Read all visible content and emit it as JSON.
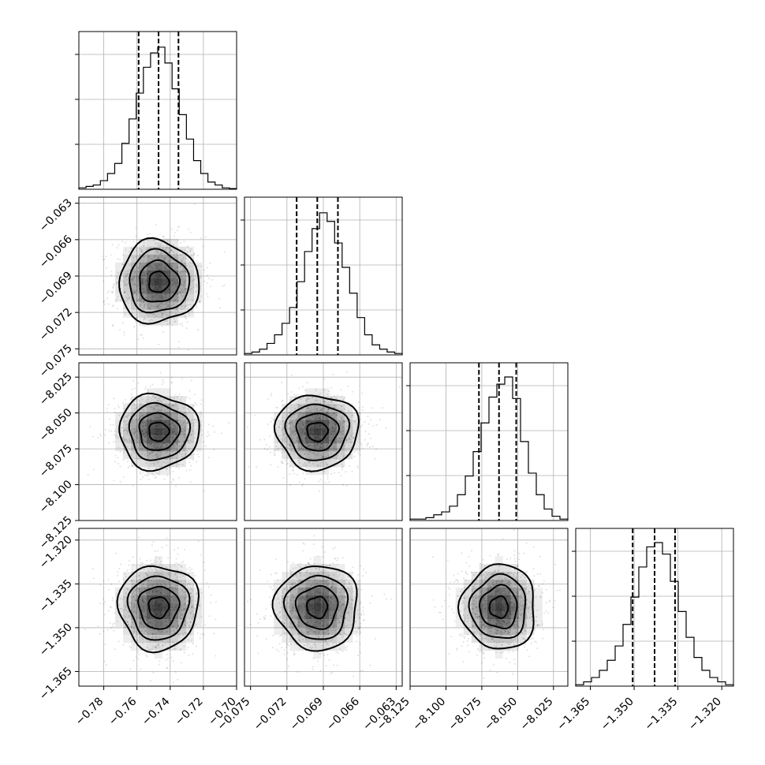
{
  "chart_data": {
    "type": "corner",
    "grid": true,
    "parameters": [
      {
        "range": [
          -0.795,
          -0.7
        ],
        "ticks": [
          -0.78,
          -0.76,
          -0.74,
          -0.72,
          -0.7
        ],
        "tick_labels": [
          "−0.78",
          "−0.76",
          "−0.74",
          "−0.72",
          "−0.70"
        ],
        "median": -0.747,
        "quantiles": [
          -0.759,
          -0.747,
          -0.735
        ],
        "histogram": [
          0.01,
          0.02,
          0.03,
          0.06,
          0.11,
          0.18,
          0.32,
          0.49,
          0.67,
          0.85,
          0.95,
          0.99,
          0.88,
          0.7,
          0.52,
          0.35,
          0.2,
          0.11,
          0.05,
          0.03,
          0.01,
          0.005
        ]
      },
      {
        "range": [
          -0.0755,
          -0.0625
        ],
        "ticks": [
          -0.075,
          -0.072,
          -0.069,
          -0.066,
          -0.063
        ],
        "tick_labels": [
          "−0.075",
          "−0.072",
          "−0.069",
          "−0.066",
          "−0.063"
        ],
        "median": -0.0695,
        "quantiles": [
          -0.0712,
          -0.0695,
          -0.0678
        ],
        "histogram": [
          0.01,
          0.02,
          0.04,
          0.08,
          0.14,
          0.22,
          0.33,
          0.51,
          0.72,
          0.88,
          0.99,
          0.93,
          0.78,
          0.61,
          0.43,
          0.26,
          0.14,
          0.07,
          0.04,
          0.02,
          0.01
        ]
      },
      {
        "range": [
          -8.125,
          -8.015
        ],
        "ticks": [
          -8.125,
          -8.1,
          -8.075,
          -8.05,
          -8.025
        ],
        "tick_labels": [
          "−8.125",
          "−8.100",
          "−8.075",
          "−8.050",
          "−8.025"
        ],
        "median": -8.063,
        "quantiles": [
          -8.077,
          -8.063,
          -8.051
        ],
        "histogram": [
          0.01,
          0.01,
          0.02,
          0.04,
          0.06,
          0.1,
          0.18,
          0.31,
          0.48,
          0.68,
          0.86,
          0.95,
          1.0,
          0.85,
          0.55,
          0.33,
          0.18,
          0.08,
          0.03,
          0.01
        ]
      },
      {
        "range": [
          -1.37,
          -1.316
        ],
        "ticks": [
          -1.365,
          -1.35,
          -1.335,
          -1.32
        ],
        "tick_labels": [
          "−1.365",
          "−1.350",
          "−1.335",
          "−1.320"
        ],
        "median": -1.343,
        "quantiles": [
          -1.3505,
          -1.343,
          -1.336
        ],
        "histogram": [
          0.01,
          0.03,
          0.06,
          0.11,
          0.18,
          0.28,
          0.43,
          0.62,
          0.83,
          0.97,
          1.0,
          0.92,
          0.73,
          0.52,
          0.34,
          0.2,
          0.11,
          0.06,
          0.03,
          0.01
        ]
      }
    ]
  }
}
